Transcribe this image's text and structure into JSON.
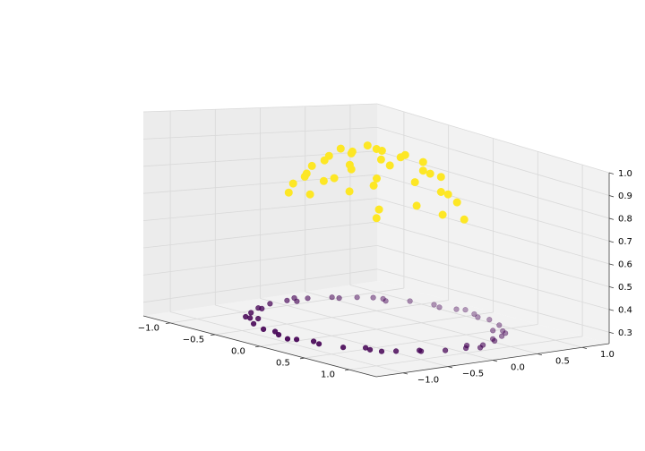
{
  "chart_data": {
    "type": "scatter",
    "projection": "3d",
    "title": "",
    "xlabel": "",
    "ylabel": "",
    "zlabel": "",
    "xlim": [
      -1.3,
      1.3
    ],
    "ylim": [
      -1.3,
      1.3
    ],
    "zlim": [
      0.25,
      1.0
    ],
    "grid": true,
    "x_ticks": [
      -1.0,
      -0.5,
      0.0,
      0.5,
      1.0
    ],
    "y_ticks": [
      -1.0,
      -0.5,
      0.0,
      0.5,
      1.0
    ],
    "z_ticks": [
      0.3,
      0.4,
      0.5,
      0.6,
      0.7,
      0.8,
      0.9,
      1.0
    ],
    "x_tick_labels": [
      "−1.0",
      "−0.5",
      "0.0",
      "0.5",
      "1.0"
    ],
    "y_tick_labels": [
      "−1.0",
      "−0.5",
      "0.0",
      "0.5",
      "1.0"
    ],
    "z_tick_labels": [
      "0.3",
      "0.4",
      "0.5",
      "0.6",
      "0.7",
      "0.8",
      "0.9",
      "1.0"
    ],
    "colors": {
      "outer_class": "#440154",
      "inner_class": "#fde725",
      "pane": "#f2f2f2",
      "grid": "#d9d9d9",
      "axis": "#404040"
    },
    "series": [
      {
        "class": 0,
        "color": "#440154",
        "points": [
          [
            1.0,
            0.0,
            0.27
          ],
          [
            0.98,
            0.21,
            0.27
          ],
          [
            0.91,
            0.41,
            0.27
          ],
          [
            0.81,
            0.59,
            0.27
          ],
          [
            0.67,
            0.74,
            0.27
          ],
          [
            0.5,
            0.87,
            0.27
          ],
          [
            0.31,
            0.95,
            0.27
          ],
          [
            0.1,
            0.99,
            0.27
          ],
          [
            -0.1,
            0.99,
            0.27
          ],
          [
            -0.31,
            0.95,
            0.27
          ],
          [
            -0.5,
            0.87,
            0.27
          ],
          [
            -0.67,
            0.74,
            0.27
          ],
          [
            -0.81,
            0.59,
            0.27
          ],
          [
            -0.91,
            0.41,
            0.27
          ],
          [
            -0.98,
            0.21,
            0.27
          ],
          [
            -1.0,
            0.0,
            0.27
          ],
          [
            -0.98,
            -0.21,
            0.27
          ],
          [
            -0.91,
            -0.41,
            0.27
          ],
          [
            -0.81,
            -0.59,
            0.27
          ],
          [
            -0.67,
            -0.74,
            0.27
          ],
          [
            -0.5,
            -0.87,
            0.27
          ],
          [
            -0.31,
            -0.95,
            0.27
          ],
          [
            -0.1,
            -0.99,
            0.27
          ],
          [
            0.1,
            -0.99,
            0.27
          ],
          [
            0.31,
            -0.95,
            0.27
          ],
          [
            0.5,
            -0.87,
            0.27
          ],
          [
            0.67,
            -0.74,
            0.27
          ],
          [
            0.81,
            -0.59,
            0.27
          ],
          [
            0.91,
            -0.41,
            0.27
          ],
          [
            0.98,
            -0.21,
            0.27
          ],
          [
            0.93,
            0.08,
            0.27
          ],
          [
            0.85,
            0.45,
            0.27
          ],
          [
            0.62,
            0.68,
            0.27
          ],
          [
            0.2,
            0.93,
            0.27
          ],
          [
            -0.22,
            0.92,
            0.27
          ],
          [
            -0.6,
            0.7,
            0.27
          ],
          [
            -0.86,
            0.44,
            0.27
          ],
          [
            -0.94,
            0.05,
            0.27
          ],
          [
            -0.88,
            -0.4,
            0.27
          ],
          [
            -0.62,
            -0.7,
            0.27
          ],
          [
            -0.2,
            -0.93,
            0.27
          ],
          [
            0.22,
            -0.92,
            0.27
          ],
          [
            0.6,
            -0.72,
            0.27
          ],
          [
            0.88,
            -0.4,
            0.27
          ],
          [
            1.04,
            0.12,
            0.27
          ],
          [
            0.74,
            0.7,
            0.27
          ],
          [
            -0.05,
            1.04,
            0.27
          ],
          [
            -0.74,
            0.7,
            0.27
          ],
          [
            -1.04,
            0.12,
            0.27
          ],
          [
            -0.72,
            -0.74,
            0.27
          ],
          [
            0.05,
            -1.04,
            0.27
          ],
          [
            0.76,
            -0.7,
            0.27
          ]
        ]
      },
      {
        "class": 1,
        "color": "#fde725",
        "points": [
          [
            0.0,
            0.0,
            0.98
          ],
          [
            0.22,
            0.05,
            0.97
          ],
          [
            -0.2,
            0.1,
            0.97
          ],
          [
            0.08,
            0.24,
            0.96
          ],
          [
            -0.06,
            -0.22,
            0.96
          ],
          [
            0.3,
            -0.15,
            0.95
          ],
          [
            -0.3,
            -0.1,
            0.95
          ],
          [
            0.18,
            0.34,
            0.94
          ],
          [
            -0.24,
            0.3,
            0.94
          ],
          [
            0.4,
            0.2,
            0.92
          ],
          [
            -0.42,
            0.15,
            0.92
          ],
          [
            0.12,
            -0.4,
            0.92
          ],
          [
            -0.2,
            -0.38,
            0.92
          ],
          [
            0.48,
            -0.05,
            0.9
          ],
          [
            -0.48,
            -0.05,
            0.9
          ],
          [
            0.3,
            0.42,
            0.89
          ],
          [
            -0.35,
            0.4,
            0.89
          ],
          [
            0.35,
            -0.38,
            0.88
          ],
          [
            -0.36,
            -0.36,
            0.88
          ],
          [
            0.0,
            0.52,
            0.88
          ],
          [
            0.05,
            -0.52,
            0.88
          ],
          [
            0.55,
            0.25,
            0.85
          ],
          [
            -0.55,
            0.25,
            0.85
          ],
          [
            0.25,
            -0.55,
            0.85
          ],
          [
            -0.28,
            -0.52,
            0.85
          ],
          [
            0.6,
            -0.15,
            0.82
          ],
          [
            -0.6,
            -0.18,
            0.82
          ],
          [
            0.45,
            0.45,
            0.8
          ],
          [
            -0.45,
            0.45,
            0.8
          ],
          [
            0.48,
            -0.45,
            0.8
          ],
          [
            -0.48,
            -0.45,
            0.8
          ],
          [
            0.1,
            0.62,
            0.8
          ],
          [
            -0.12,
            -0.62,
            0.8
          ],
          [
            0.64,
            0.1,
            0.78
          ],
          [
            -0.64,
            0.05,
            0.78
          ],
          [
            0.62,
            0.36,
            0.75
          ],
          [
            -0.6,
            -0.38,
            0.75
          ],
          [
            0.0,
            0.0,
            0.7
          ]
        ]
      }
    ]
  }
}
